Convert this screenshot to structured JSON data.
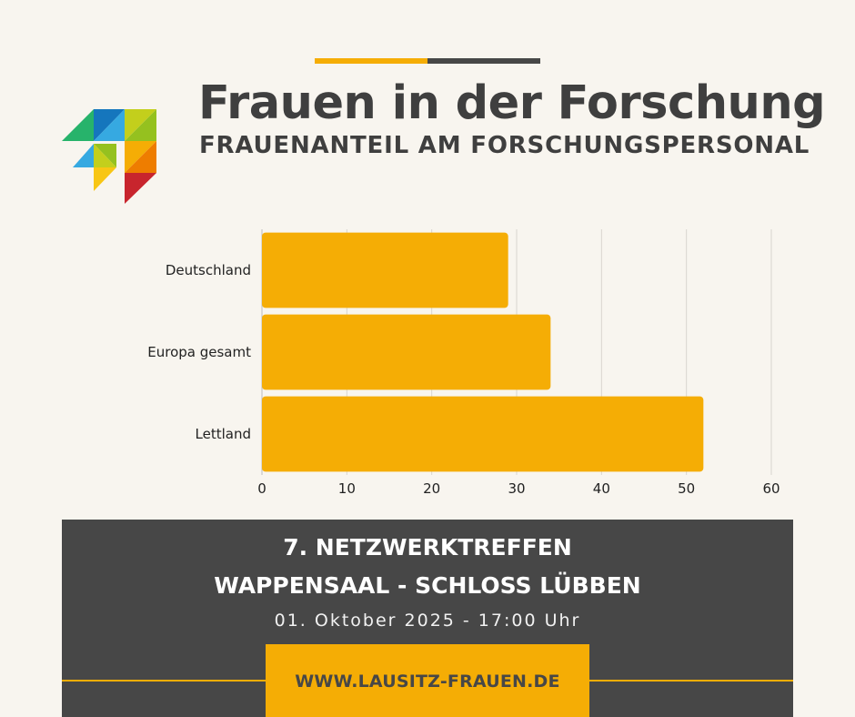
{
  "colors": {
    "background": "#f8f5ef",
    "accent": "#f5ad05",
    "dark": "#474747",
    "text_dark": "#3f3f3f",
    "grid": "#d8d5cf"
  },
  "header": {
    "title": "Frauen in der Forschung",
    "subtitle": "FRAUENANTEIL AM FORSCHUNGSPERSONAL"
  },
  "logo": {
    "icon": "multicolor-triangle-mosaic-logo"
  },
  "chart_data": {
    "type": "bar",
    "orientation": "horizontal",
    "categories": [
      "Deutschland",
      "Europa gesamt",
      "Lettland"
    ],
    "values": [
      29,
      34,
      52
    ],
    "xlim": [
      0,
      60
    ],
    "xticks": [
      "0",
      "10",
      "20",
      "30",
      "40",
      "50",
      "60"
    ],
    "grid": true,
    "bar_color": "#f5ad05"
  },
  "banner": {
    "event": "7. NETZWERKTREFFEN",
    "venue": "WAPPENSAAL - SCHLOSS LÜBBEN",
    "date": "01. Oktober 2025 - 17:00 Uhr",
    "url": "WWW.LAUSITZ-FRAUEN.DE"
  }
}
